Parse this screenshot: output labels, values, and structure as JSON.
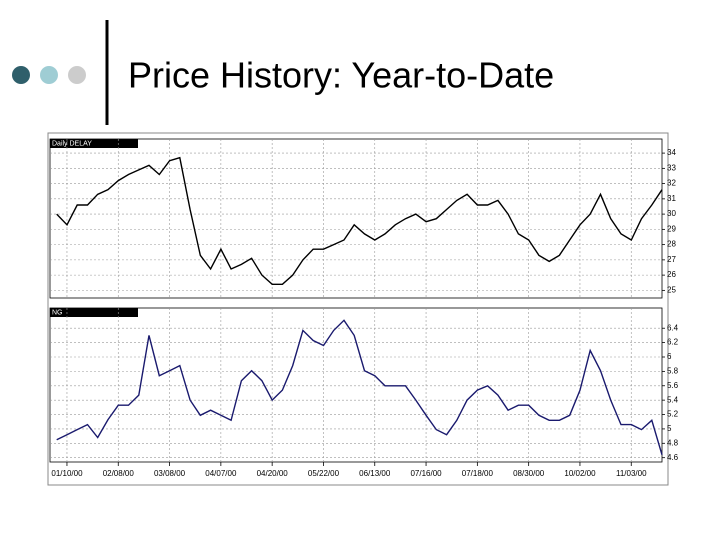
{
  "slide": {
    "title": "Price History: Year-to-Date"
  },
  "chart_data": [
    {
      "type": "line",
      "panel_label": "Daily DELAY",
      "color": "#000000",
      "values": [
        30.0,
        29.3,
        30.6,
        30.6,
        31.3,
        31.6,
        32.2,
        32.6,
        32.9,
        33.2,
        32.6,
        33.5,
        33.7,
        30.3,
        27.3,
        26.4,
        27.7,
        26.4,
        26.7,
        27.1,
        26.0,
        25.4,
        25.4,
        26.0,
        27.0,
        27.7,
        27.7,
        28.0,
        28.3,
        29.3,
        28.7,
        28.3,
        28.7,
        29.3,
        29.7,
        30.0,
        29.5,
        29.7,
        30.3,
        30.9,
        31.3,
        30.6,
        30.6,
        30.9,
        30.0,
        28.7,
        28.3,
        27.3,
        26.9,
        27.3,
        28.3,
        29.3,
        30.0,
        31.3,
        29.7,
        28.7,
        28.3,
        29.7,
        30.6,
        31.6
      ],
      "ylim": [
        24.5,
        34.4
      ],
      "yticks": [
        34,
        33,
        32,
        31,
        30,
        29,
        28,
        27,
        26,
        25
      ],
      "grid": true
    },
    {
      "type": "line",
      "panel_label": "NG",
      "color": "#1a1a6e",
      "values": [
        4.85,
        4.92,
        4.99,
        5.06,
        4.88,
        5.13,
        5.33,
        5.33,
        5.47,
        6.3,
        5.74,
        5.81,
        5.88,
        5.4,
        5.19,
        5.26,
        5.19,
        5.12,
        5.67,
        5.81,
        5.67,
        5.4,
        5.54,
        5.88,
        6.37,
        6.23,
        6.16,
        6.37,
        6.51,
        6.3,
        5.81,
        5.74,
        5.6,
        5.6,
        5.6,
        5.4,
        5.19,
        4.99,
        4.92,
        5.12,
        5.4,
        5.54,
        5.6,
        5.47,
        5.26,
        5.33,
        5.33,
        5.19,
        5.12,
        5.12,
        5.19,
        5.54,
        6.09,
        5.81,
        5.4,
        5.06,
        5.06,
        4.99,
        5.12,
        4.64
      ],
      "categories": [
        null,
        "01/10/00",
        null,
        null,
        null,
        null,
        "02/08/00",
        null,
        null,
        null,
        null,
        "03/08/00",
        null,
        null,
        null,
        null,
        "04/07/00",
        null,
        null,
        null,
        null,
        "04/20/00",
        null,
        null,
        null,
        null,
        "05/22/00",
        null,
        null,
        null,
        null,
        "06/13/00",
        null,
        null,
        null,
        null,
        "07/16/00",
        null,
        null,
        null,
        null,
        "07/18/00",
        null,
        null,
        null,
        null,
        "08/30/00",
        null,
        null,
        null,
        null,
        "10/02/00",
        null,
        null,
        null,
        null,
        "11/03/00",
        null,
        null,
        null
      ],
      "ylim": [
        4.54,
        6.57
      ],
      "yticks": [
        6.4,
        6.2,
        6.0,
        5.8,
        5.6,
        5.4,
        5.2,
        5.0,
        4.8,
        4.6
      ],
      "grid": true
    }
  ]
}
